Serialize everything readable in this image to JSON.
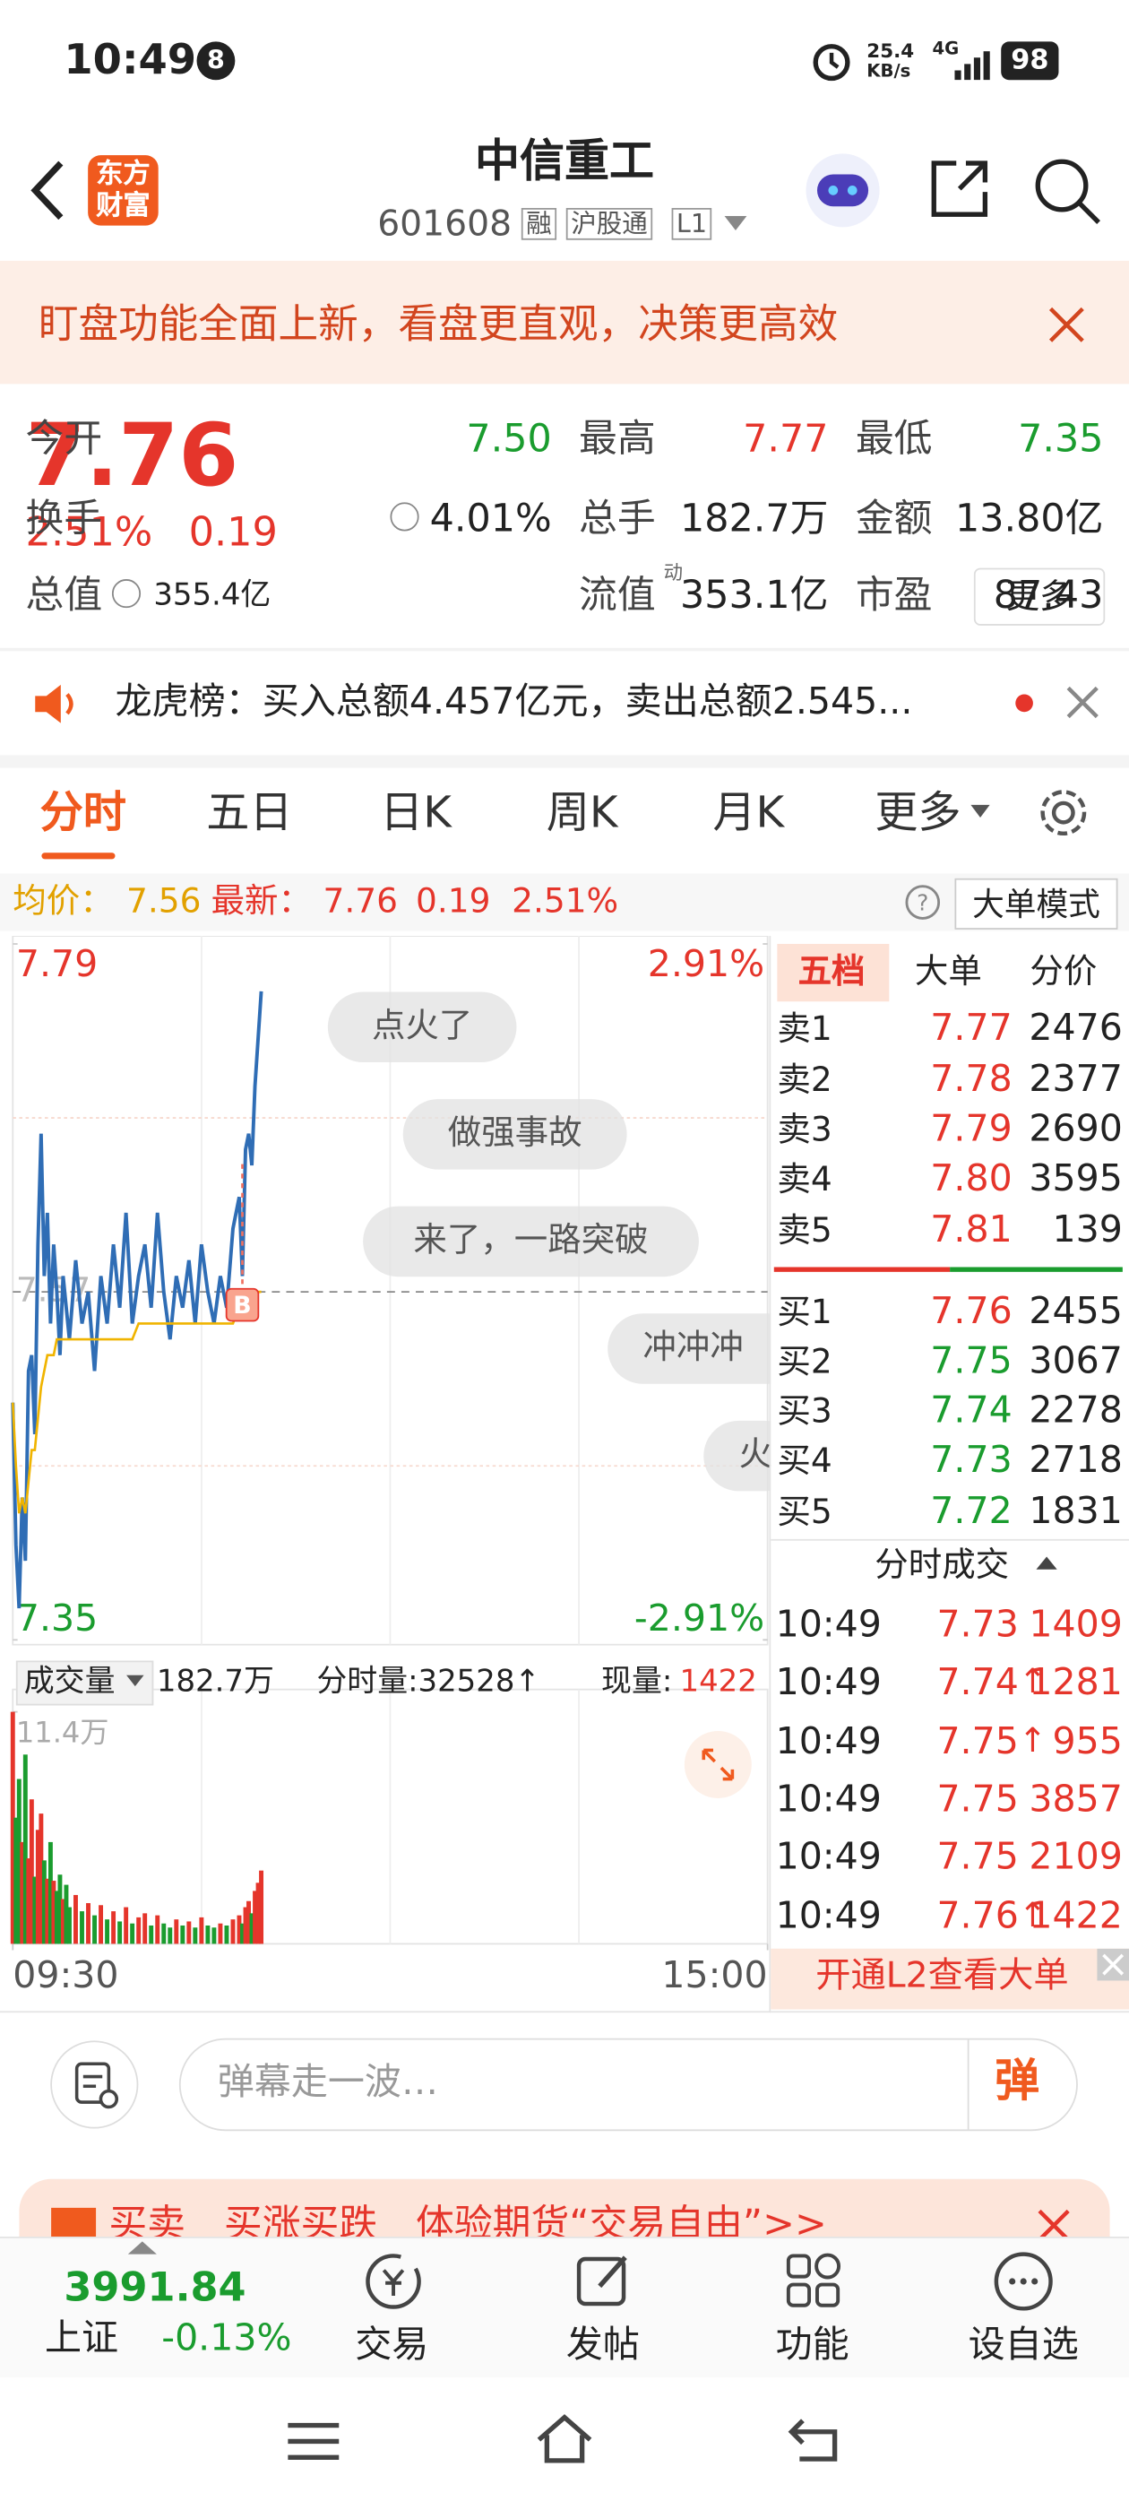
{
  "status": {
    "time": "10:49",
    "badge": "8",
    "speed": "25.4",
    "speed_unit": "KB/s",
    "network": "4G",
    "battery": "98"
  },
  "header": {
    "logo": "东方财富",
    "title": "中信重工",
    "code": "601608",
    "tags": [
      "融",
      "沪股通",
      "L1"
    ]
  },
  "banner": {
    "text": "盯盘功能全面上新，看盘更直观，决策更高效"
  },
  "quote": {
    "price": "7.76",
    "change_pct": "2.51%",
    "change": "0.19",
    "fields": [
      {
        "label": "今开",
        "value": "7.50"
      },
      {
        "label": "最高",
        "value": "7.77"
      },
      {
        "label": "最低",
        "value": "7.35"
      },
      {
        "label": "换手",
        "value": "4.01%"
      },
      {
        "label": "总手",
        "value": "182.7万"
      },
      {
        "label": "金额",
        "value": "13.80亿"
      },
      {
        "label": "总值",
        "value": "355.4亿"
      },
      {
        "label": "流值",
        "value": "353.1亿"
      },
      {
        "label": "市盈",
        "value": "87.43"
      }
    ],
    "pe_mark": "动",
    "more": "更多"
  },
  "notice": {
    "text": "龙虎榜：买入总额4.457亿元，卖出总额2.545..."
  },
  "tabs": [
    "分时",
    "五日",
    "日K",
    "周K",
    "月K",
    "更多"
  ],
  "info": {
    "avg_label": "均价：",
    "avg": "7.56",
    "latest_label": "最新：",
    "latest": "7.76",
    "change": "0.19",
    "change_pct": "2.51%",
    "mode": "大单模式"
  },
  "chart_data": {
    "type": "line",
    "xlim": [
      0,
      240
    ],
    "xticks": [
      {
        "value": 0,
        "label": "09:30"
      },
      {
        "value": 240,
        "label": "15:00"
      }
    ],
    "ylim": [
      7.35,
      7.79
    ],
    "yticks": [
      7.35,
      7.57,
      7.79
    ],
    "y2lim": [
      -2.91,
      2.91
    ],
    "y2ticks": [
      {
        "value": -2.91,
        "label": "-2.91%"
      },
      {
        "value": 2.91,
        "label": "2.91%"
      }
    ],
    "x": [
      0,
      1,
      2,
      3,
      4,
      5,
      6,
      7,
      8,
      9,
      10,
      11,
      12,
      13,
      14,
      15,
      16,
      17,
      18,
      20,
      22,
      24,
      26,
      28,
      30,
      32,
      34,
      36,
      38,
      40,
      42,
      44,
      46,
      48,
      50,
      52,
      54,
      56,
      58,
      60,
      62,
      64,
      66,
      68,
      70,
      72,
      73,
      74,
      75,
      76,
      77,
      78,
      79
    ],
    "series": [
      {
        "name": "最新",
        "color": "#2f6db5",
        "values": [
          7.5,
          7.41,
          7.37,
          7.44,
          7.4,
          7.52,
          7.53,
          7.48,
          7.6,
          7.67,
          7.58,
          7.62,
          7.55,
          7.6,
          7.57,
          7.53,
          7.58,
          7.56,
          7.54,
          7.59,
          7.55,
          7.57,
          7.52,
          7.58,
          7.55,
          7.6,
          7.56,
          7.62,
          7.55,
          7.58,
          7.6,
          7.56,
          7.62,
          7.57,
          7.54,
          7.58,
          7.56,
          7.59,
          7.55,
          7.6,
          7.57,
          7.55,
          7.58,
          7.56,
          7.61,
          7.63,
          7.58,
          7.66,
          7.67,
          7.65,
          7.7,
          7.73,
          7.76
        ]
      },
      {
        "name": "均价",
        "color": "#f0b400",
        "values": [
          7.5,
          7.46,
          7.43,
          7.44,
          7.43,
          7.45,
          7.47,
          7.47,
          7.49,
          7.51,
          7.52,
          7.53,
          7.53,
          7.53,
          7.54,
          7.54,
          7.54,
          7.54,
          7.54,
          7.54,
          7.54,
          7.54,
          7.54,
          7.54,
          7.54,
          7.54,
          7.54,
          7.54,
          7.54,
          7.55,
          7.55,
          7.55,
          7.55,
          7.55,
          7.55,
          7.55,
          7.55,
          7.55,
          7.55,
          7.55,
          7.55,
          7.55,
          7.55,
          7.55,
          7.55,
          7.56,
          7.56,
          7.56,
          7.56,
          7.56,
          7.56,
          7.57,
          7.57
        ]
      }
    ],
    "volume": {
      "ylim": [
        0,
        11.4
      ],
      "yticks": [
        {
          "value": 11.4,
          "label": "11.4万"
        }
      ],
      "values": [
        11.4,
        6.2,
        8.1,
        5.0,
        9.3,
        4.2,
        7.1,
        3.3,
        5.6,
        6.4,
        4.1,
        3.2,
        5.0,
        3.1,
        2.6,
        3.4,
        2.2,
        2.9,
        1.8,
        2.4,
        1.6,
        2.0,
        1.4,
        1.9,
        1.2,
        1.6,
        1.1,
        1.8,
        1.0,
        1.3,
        1.5,
        0.9,
        1.4,
        1.0,
        0.8,
        1.2,
        0.9,
        1.1,
        0.8,
        1.3,
        0.9,
        0.8,
        1.0,
        0.9,
        1.2,
        1.4,
        1.0,
        1.8,
        2.1,
        1.5,
        2.6,
        3.0,
        3.6
      ]
    },
    "mid_label": "7.57",
    "buy_marker": "B",
    "danmaku": [
      "点火了",
      "做强事故",
      "来了，一路突破",
      "冲冲冲",
      "火"
    ]
  },
  "volume_bar": {
    "label": "成交量",
    "total": "182.7万",
    "segment": "分时量:32528↑",
    "now_label": "现量:",
    "now": "1422"
  },
  "orderbook": {
    "tabs": [
      "五档",
      "大单",
      "分价"
    ],
    "sells": [
      {
        "label": "卖5",
        "price": "7.81",
        "volume": "139"
      },
      {
        "label": "卖4",
        "price": "7.80",
        "volume": "3595"
      },
      {
        "label": "卖3",
        "price": "7.79",
        "volume": "2690"
      },
      {
        "label": "卖2",
        "price": "7.78",
        "volume": "2377"
      },
      {
        "label": "卖1",
        "price": "7.77",
        "volume": "2476"
      }
    ],
    "buys": [
      {
        "label": "买1",
        "price": "7.76",
        "volume": "2455"
      },
      {
        "label": "买2",
        "price": "7.75",
        "volume": "3067"
      },
      {
        "label": "买3",
        "price": "7.74",
        "volume": "2278"
      },
      {
        "label": "买4",
        "price": "7.73",
        "volume": "2718"
      },
      {
        "label": "买5",
        "price": "7.72",
        "volume": "1831"
      }
    ],
    "trades_title": "分时成交",
    "trades": [
      {
        "time": "10:49",
        "price": "7.73",
        "arrow": "",
        "volume": "1409"
      },
      {
        "time": "10:49",
        "price": "7.74",
        "arrow": "↑",
        "volume": "1281"
      },
      {
        "time": "10:49",
        "price": "7.75",
        "arrow": "↑",
        "volume": "955"
      },
      {
        "time": "10:49",
        "price": "7.75",
        "arrow": "",
        "volume": "3857"
      },
      {
        "time": "10:49",
        "price": "7.75",
        "arrow": "",
        "volume": "2109"
      },
      {
        "time": "10:49",
        "price": "7.76",
        "arrow": "↑",
        "volume": "1422"
      }
    ],
    "l2": "开通L2查看大单"
  },
  "comment": {
    "placeholder": "弹幕走一波…",
    "button": "弹"
  },
  "ad": {
    "text": "买卖　买涨买跌　体验期货“交易自由”>>"
  },
  "bottom_nav": {
    "index_value": "3991.84",
    "index_name": "上证",
    "index_change": "-0.13%",
    "items": [
      "交易",
      "发帖",
      "功能",
      "设自选"
    ]
  }
}
